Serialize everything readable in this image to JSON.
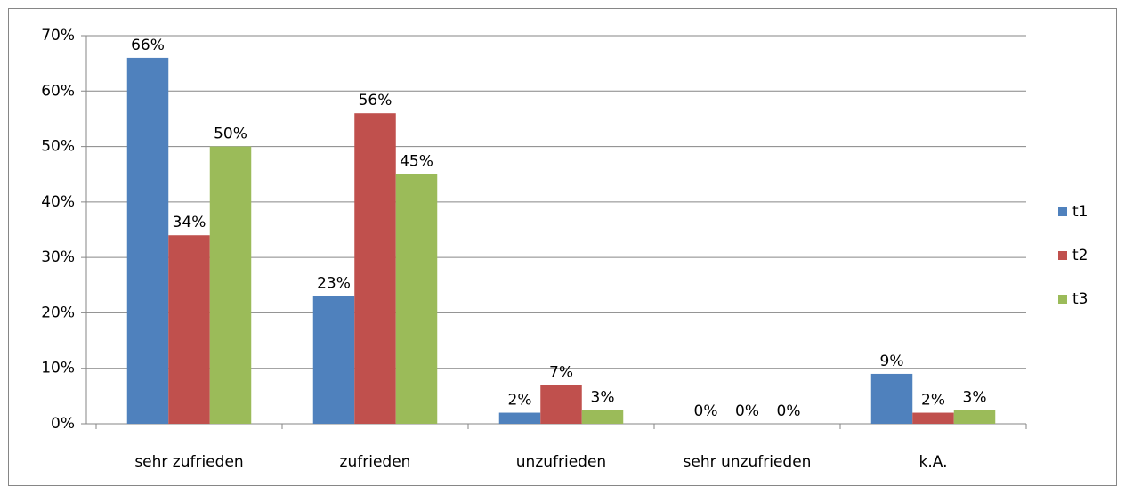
{
  "chart_data": {
    "type": "bar",
    "categories": [
      "sehr zufrieden",
      "zufrieden",
      "unzufrieden",
      "sehr unzufrieden",
      "k.A."
    ],
    "series": [
      {
        "name": "t1",
        "color": "#4f81bd",
        "values": [
          66,
          23,
          2,
          0,
          9
        ],
        "value_labels": [
          "66%",
          "23%",
          "2%",
          "0%",
          "9%"
        ]
      },
      {
        "name": "t2",
        "color": "#c0504d",
        "values": [
          34,
          56,
          7,
          0,
          2
        ],
        "value_labels": [
          "34%",
          "56%",
          "7%",
          "0%",
          "2%"
        ]
      },
      {
        "name": "t3",
        "color": "#9bbb59",
        "values": [
          50,
          45,
          2.5,
          0,
          2.5
        ],
        "value_labels": [
          "50%",
          "45%",
          "3%",
          "0%",
          "3%"
        ]
      }
    ],
    "ylim": [
      0,
      70
    ],
    "yticks": [
      {
        "value": 0,
        "label": "0%"
      },
      {
        "value": 10,
        "label": "10%"
      },
      {
        "value": 20,
        "label": "20%"
      },
      {
        "value": 30,
        "label": "30%"
      },
      {
        "value": 40,
        "label": "40%"
      },
      {
        "value": 50,
        "label": "50%"
      },
      {
        "value": 60,
        "label": "60%"
      },
      {
        "value": 70,
        "label": "70%"
      }
    ],
    "grid": true,
    "legend": "right"
  }
}
